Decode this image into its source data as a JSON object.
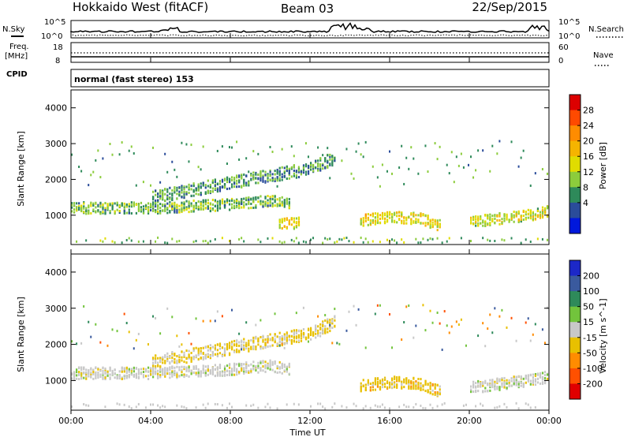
{
  "header": {
    "title": "Hokkaido West (fitACF)",
    "beam": "Beam 03",
    "date": "22/Sep/2015"
  },
  "summary": {
    "nsky_label": "N.Sky",
    "nsearch_label": "N.Search",
    "count_top_left": "10^5",
    "count_bottom_left": "10^0",
    "count_top_right": "10^5",
    "count_bottom_right": "10^0",
    "freq_label_top": "Freq.",
    "freq_label_unit": "[MHz]",
    "freq_ticks": [
      "18",
      "8"
    ],
    "nave_ticks": [
      "60",
      "0"
    ],
    "nave_label": "Nave",
    "cpid_label": "CPID",
    "cpid_text": "normal (fast stereo) 153"
  },
  "axes": {
    "ylabel": "Slant Range [km]",
    "yticks": [
      "4000",
      "3000",
      "2000",
      "1000"
    ],
    "xticks": [
      "00:00",
      "04:00",
      "08:00",
      "12:00",
      "16:00",
      "20:00",
      "00:00"
    ],
    "xlabel": "Time UT"
  },
  "colorbars": {
    "power": {
      "label": "Power [dB]",
      "ticks": [
        "28",
        "24",
        "20",
        "16",
        "12",
        "8",
        "4"
      ],
      "colors": [
        "#dc0000",
        "#ff4a00",
        "#ff8c00",
        "#f5b400",
        "#e0dc00",
        "#8ccc3c",
        "#2e8a5a",
        "#2a4c9a",
        "#0018dc"
      ]
    },
    "velocity": {
      "label": "Velocity [m s^-1]",
      "ticks": [
        "200",
        "100",
        "50",
        "15",
        "-15",
        "-50",
        "-100",
        "-200"
      ],
      "colors": [
        "#1c28c8",
        "#3a5a9e",
        "#2e8a5a",
        "#72c43c",
        "#c8c8c8",
        "#e8c000",
        "#ff8c00",
        "#ff5000",
        "#e00000"
      ]
    }
  },
  "chart_data": [
    {
      "type": "heatmap",
      "panel": "power",
      "x_range": [
        "00:00",
        "24:00"
      ],
      "ylim": [
        180,
        4500
      ],
      "value_range": [
        0,
        30
      ],
      "features": [
        {
          "name": "echo band",
          "t": [
            0,
            4,
            8,
            10,
            11
          ],
          "range_km": [
            1200,
            1200,
            1300,
            1400,
            1300
          ],
          "power_db": 10
        },
        {
          "name": "rising band",
          "t": [
            4,
            8,
            10,
            12,
            13.2
          ],
          "range_km": [
            1500,
            1900,
            2100,
            2300,
            2600
          ],
          "power_db": 8
        },
        {
          "name": "echo band",
          "t": [
            10.4,
            11.4
          ],
          "range_km": [
            780,
            780
          ],
          "power_db": 16
        },
        {
          "name": "echo band",
          "t": [
            14.5,
            16,
            17.5,
            18.5
          ],
          "range_km": [
            850,
            950,
            900,
            700
          ],
          "power_db": 16
        },
        {
          "name": "echo band",
          "t": [
            20,
            21.5,
            23,
            24
          ],
          "range_km": [
            800,
            900,
            1000,
            1100
          ],
          "power_db": 14
        }
      ]
    },
    {
      "type": "heatmap",
      "panel": "velocity",
      "x_range": [
        "00:00",
        "24:00"
      ],
      "ylim": [
        180,
        4500
      ],
      "value_range": [
        -250,
        250
      ],
      "features": [
        {
          "name": "echo band",
          "t": [
            0,
            4,
            8,
            10,
            11
          ],
          "range_km": [
            1200,
            1200,
            1300,
            1400,
            1300
          ],
          "velocity": 0
        },
        {
          "name": "rising band",
          "t": [
            4,
            8,
            10,
            12,
            13.2
          ],
          "range_km": [
            1500,
            1900,
            2100,
            2300,
            2600
          ],
          "velocity": -40
        },
        {
          "name": "echo band",
          "t": [
            14.5,
            16,
            17.5,
            18.5
          ],
          "range_km": [
            850,
            950,
            900,
            700
          ],
          "velocity": -60
        },
        {
          "name": "echo band",
          "t": [
            20,
            21.5,
            23,
            24
          ],
          "range_km": [
            800,
            900,
            1000,
            1100
          ],
          "velocity": 0
        }
      ]
    }
  ]
}
